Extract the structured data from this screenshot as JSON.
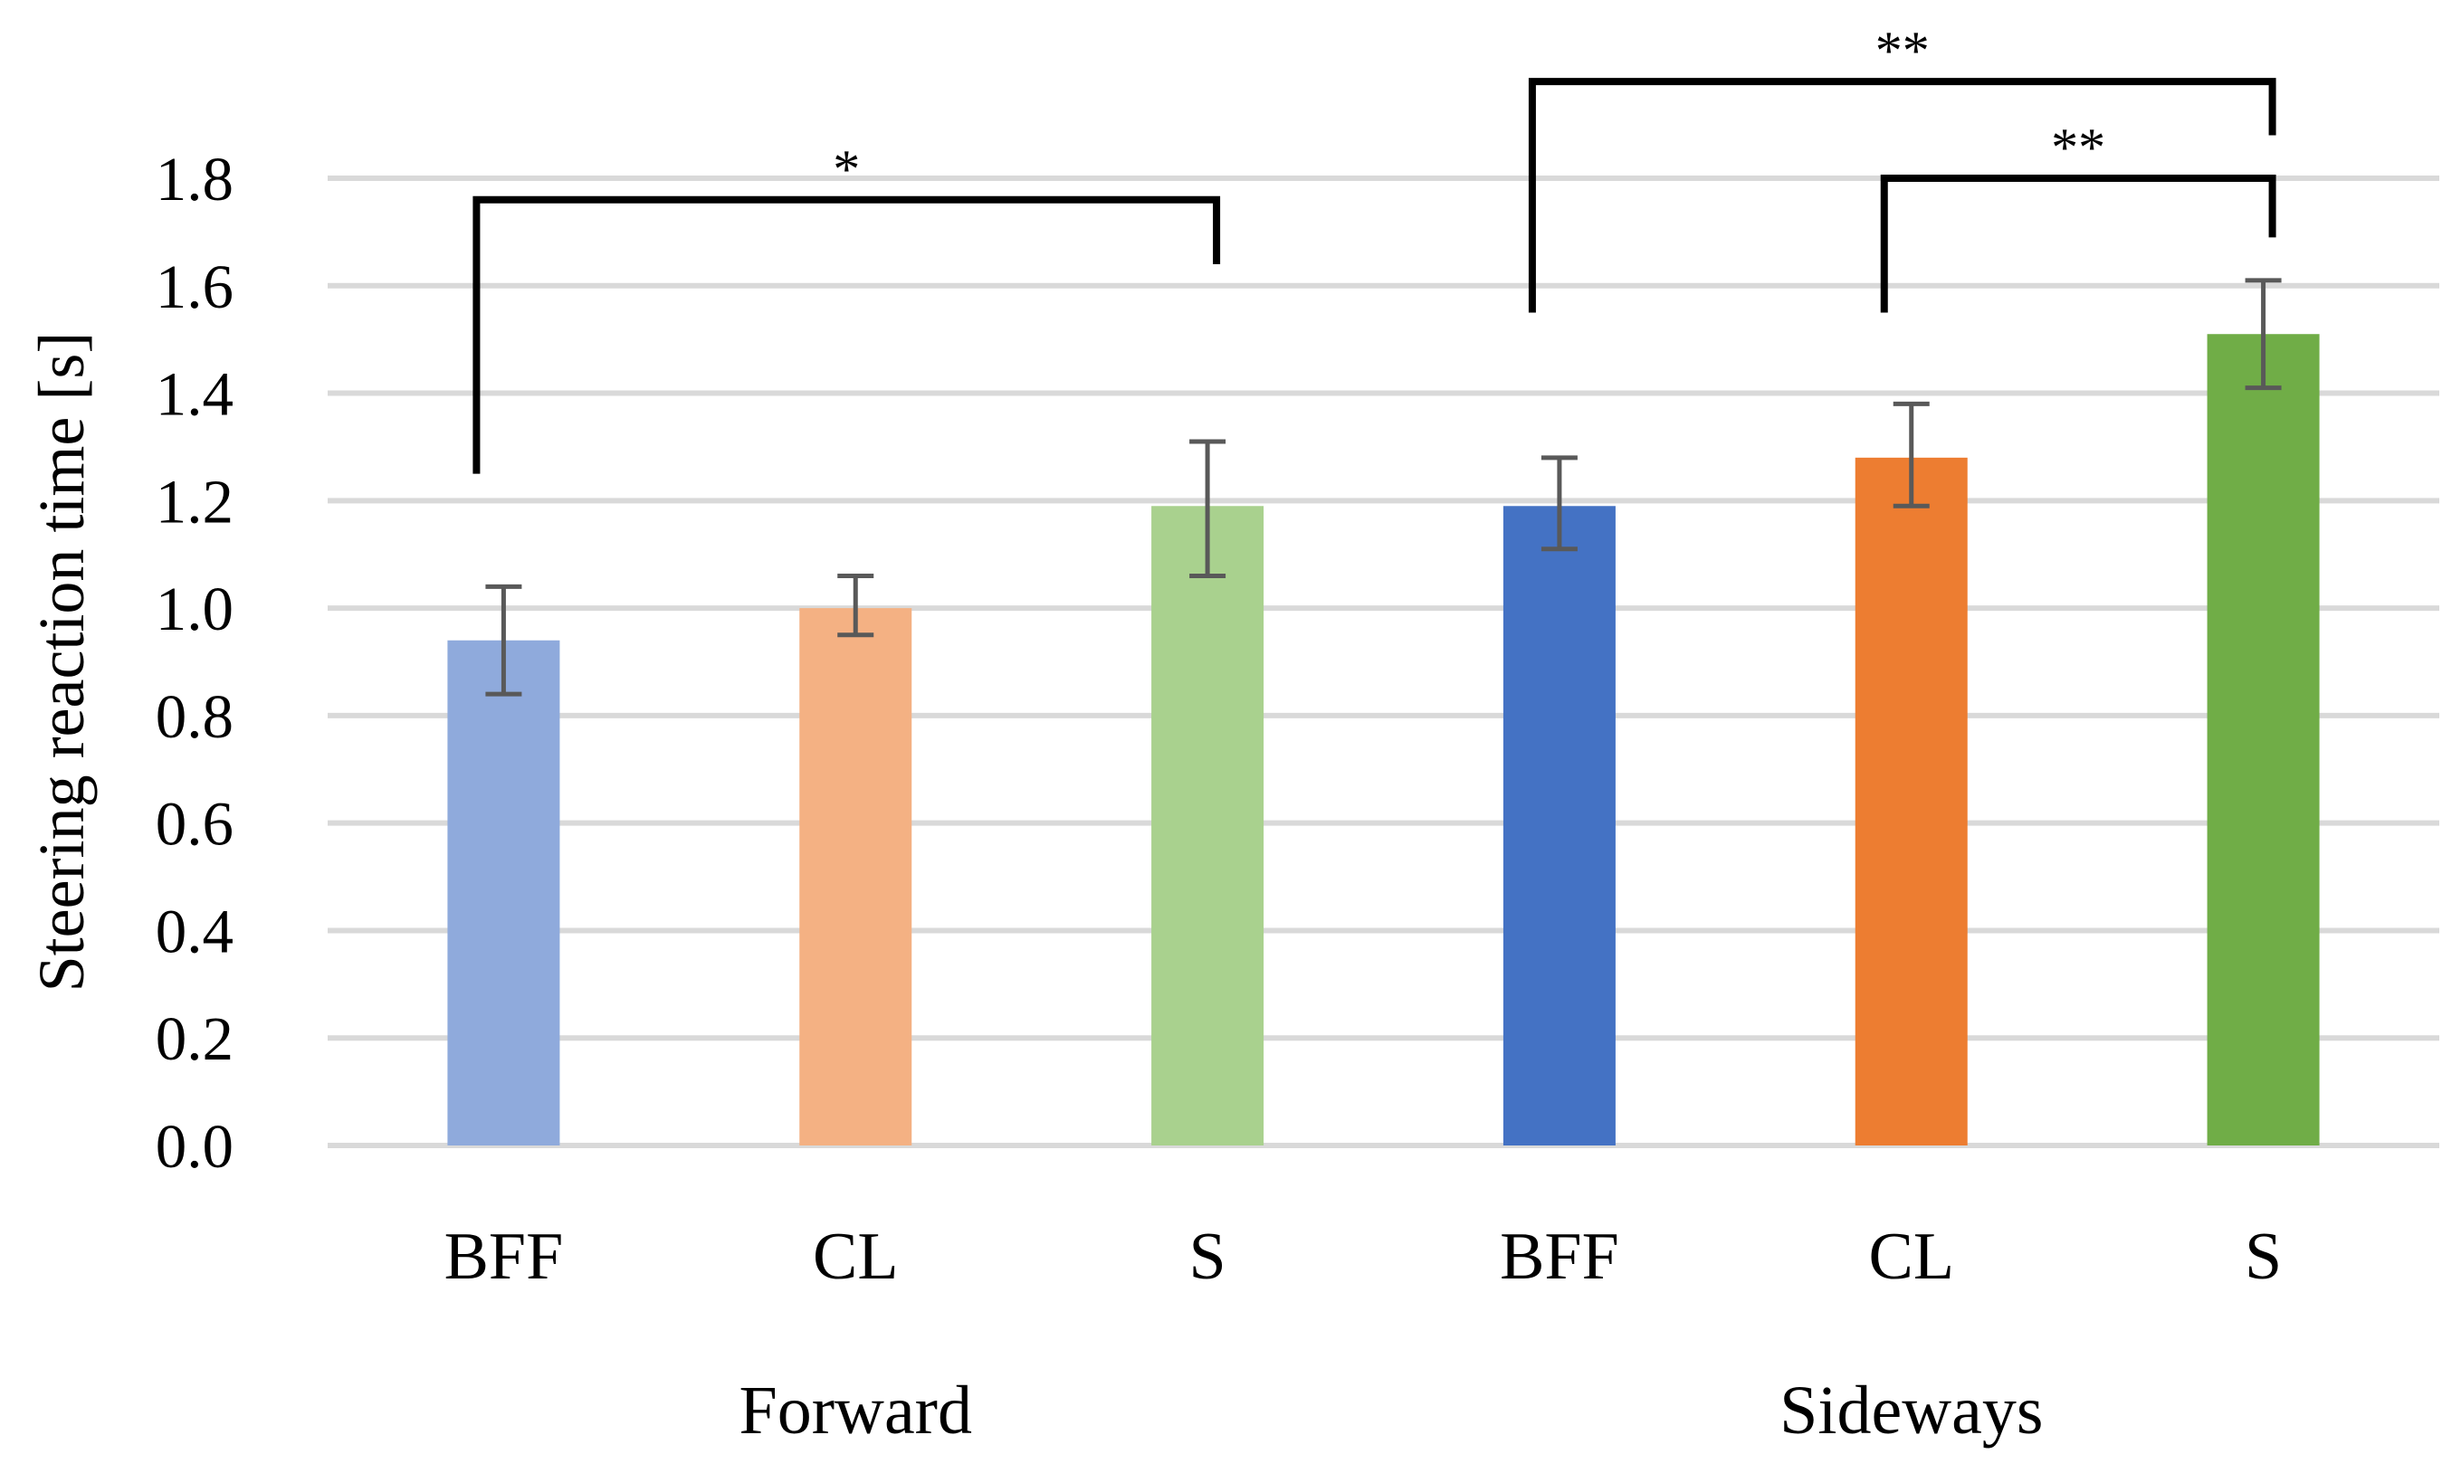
{
  "chart_data": {
    "type": "bar",
    "title": "",
    "xlabel": "",
    "ylabel": "Steering reaction time [s]",
    "ylim": [
      0,
      1.8
    ],
    "yticks": [
      "0.0",
      "0.2",
      "0.4",
      "0.6",
      "0.8",
      "1.0",
      "1.2",
      "1.4",
      "1.6",
      "1.8"
    ],
    "grid": true,
    "groups": [
      "Forward",
      "Sideways"
    ],
    "bars": [
      {
        "group": "Forward",
        "label": "BFF",
        "value": 0.94,
        "err_low": 0.84,
        "err_high": 1.04,
        "color": "#8faadc"
      },
      {
        "group": "Forward",
        "label": "CL",
        "value": 1.0,
        "err_low": 0.95,
        "err_high": 1.06,
        "color": "#f4b183"
      },
      {
        "group": "Forward",
        "label": "S",
        "value": 1.19,
        "err_low": 1.06,
        "err_high": 1.31,
        "color": "#a9d18e"
      },
      {
        "group": "Sideways",
        "label": "BFF",
        "value": 1.19,
        "err_low": 1.11,
        "err_high": 1.28,
        "color": "#4472c4"
      },
      {
        "group": "Sideways",
        "label": "CL",
        "value": 1.28,
        "err_low": 1.19,
        "err_high": 1.38,
        "color": "#ed7d31"
      },
      {
        "group": "Sideways",
        "label": "S",
        "value": 1.51,
        "err_low": 1.41,
        "err_high": 1.61,
        "color": "#70ad47"
      }
    ],
    "significance": [
      {
        "from": 0,
        "to": 2,
        "label": "*",
        "left_end": 1.25,
        "right_end": 1.64,
        "top": 1.76
      },
      {
        "from": 3,
        "to": 5,
        "label": "**",
        "left_end": 1.55,
        "right_end": 1.88,
        "top": 1.98
      },
      {
        "from": 4,
        "to": 5,
        "label": "**",
        "left_end": 1.55,
        "right_end": 1.69,
        "top": 1.8
      }
    ]
  }
}
